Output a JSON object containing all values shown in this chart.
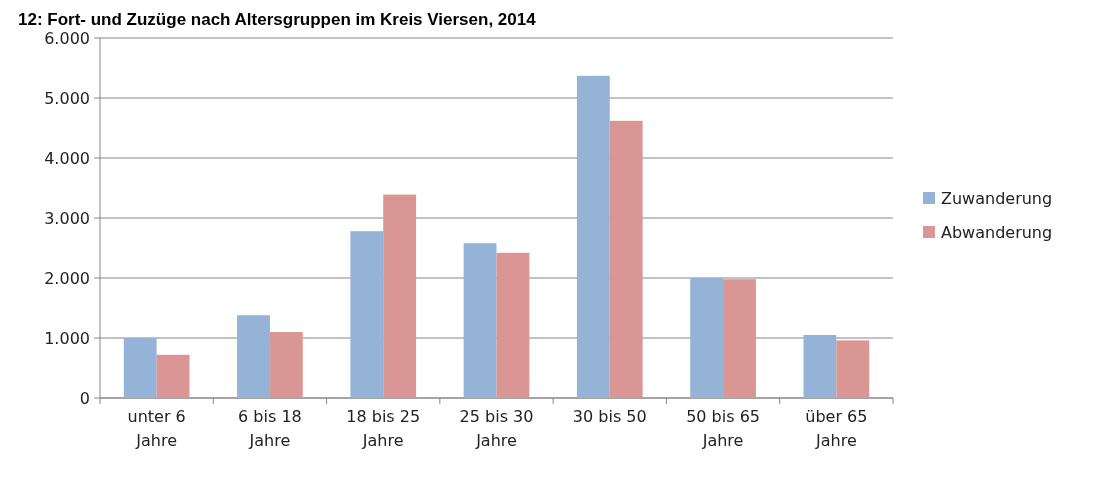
{
  "chart_data": {
    "type": "bar",
    "title": "12: Fort- und Zuzüge nach Altersgruppen im Kreis Viersen, 2014",
    "categories": [
      "unter 6 Jahre",
      "6 bis 18 Jahre",
      "18 bis 25 Jahre",
      "25 bis 30 Jahre",
      "30 bis 50",
      "50 bis 65 Jahre",
      "über 65 Jahre"
    ],
    "series": [
      {
        "name": "Zuwanderung",
        "color": "#95b3d7",
        "values": [
          1000,
          1380,
          2780,
          2580,
          5370,
          2000,
          1050
        ]
      },
      {
        "name": "Abwanderung",
        "color": "#d99694",
        "values": [
          720,
          1100,
          3390,
          2420,
          4620,
          1980,
          960
        ]
      }
    ],
    "ylim": [
      0,
      6000
    ],
    "yticks": [
      {
        "value": 0,
        "label": "0"
      },
      {
        "value": 1000,
        "label": "1.000"
      },
      {
        "value": 2000,
        "label": "2.000"
      },
      {
        "value": 3000,
        "label": "3.000"
      },
      {
        "value": 4000,
        "label": "4.000"
      },
      {
        "value": 5000,
        "label": "5.000"
      },
      {
        "value": 6000,
        "label": "6.000"
      }
    ],
    "grid": "y",
    "legend": "right"
  }
}
